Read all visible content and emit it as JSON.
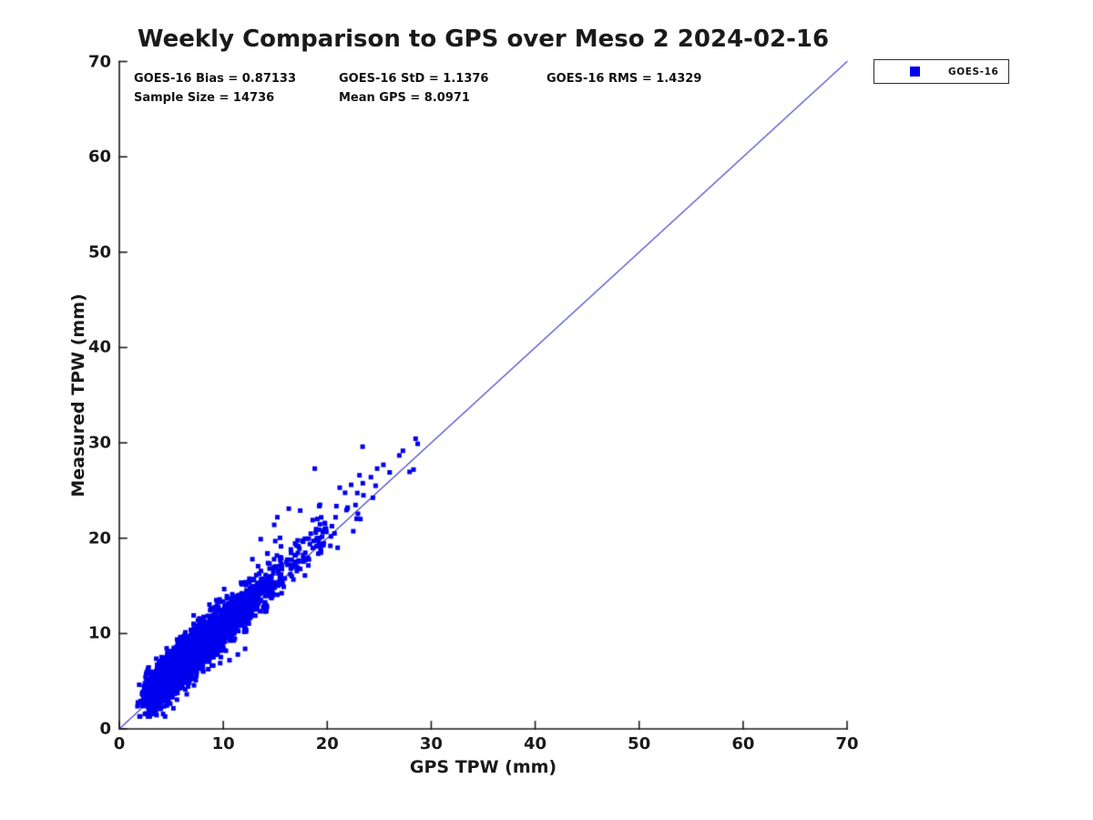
{
  "chart_data": {
    "type": "scatter",
    "title": "Weekly Comparison to GPS over Meso 2 2024-02-16",
    "xlabel": "GPS TPW (mm)",
    "ylabel": "Measured TPW (mm)",
    "xlim": [
      0,
      70
    ],
    "ylim": [
      0,
      70
    ],
    "xticks": [
      0,
      10,
      20,
      30,
      40,
      50,
      60,
      70
    ],
    "yticks": [
      0,
      10,
      20,
      30,
      40,
      50,
      60,
      70
    ],
    "grid": false,
    "annotations": {
      "row1": [
        "GOES-16 Bias = 0.87133",
        "GOES-16 StD = 1.1376",
        "GOES-16 RMS = 1.4329"
      ],
      "row2": [
        "Sample Size = 14736",
        "Mean GPS = 8.0971"
      ]
    },
    "stats": {
      "bias": 0.87133,
      "std": 1.1376,
      "rms": 1.4329,
      "sample_size": 14736,
      "mean_gps": 8.0971
    },
    "legend": {
      "position": "outside-top-right",
      "entries": [
        {
          "label": "GOES-16",
          "marker": "filled-square",
          "color": "#0000EE"
        }
      ]
    },
    "reference_line": {
      "x": [
        0,
        70
      ],
      "y": [
        0,
        70
      ],
      "color": "#3333CC",
      "width": 1.2
    },
    "series": [
      {
        "name": "GOES-16",
        "marker": "square",
        "color": "#0000EE",
        "marker_size_px": 5,
        "point_cloud_model": {
          "seed": 20240216,
          "n": 3200,
          "x_lognormal_mu": 1.95,
          "x_lognormal_sigma": 0.44,
          "x_min": 0.5,
          "x_max": 28.5,
          "bias": 0.87133,
          "noise_std": 1.1376,
          "y_min": 1.3,
          "max_above_line": 6.5,
          "max_below_line": 3.4
        },
        "outlier_points": [
          [
            18.8,
            27.3
          ],
          [
            23.4,
            29.6
          ],
          [
            28.7,
            29.9
          ],
          [
            28.3,
            27.2
          ],
          [
            15.2,
            22.2
          ],
          [
            16.3,
            23.1
          ],
          [
            14.9,
            21.4
          ],
          [
            17.4,
            22.9
          ],
          [
            19.3,
            23.5
          ],
          [
            21.2,
            25.3
          ],
          [
            22.3,
            25.6
          ],
          [
            23.1,
            26.6
          ],
          [
            24.2,
            26.4
          ],
          [
            24.8,
            27.3
          ],
          [
            25.4,
            27.7
          ],
          [
            26.0,
            26.9
          ],
          [
            13.6,
            19.9
          ],
          [
            12.8,
            17.8
          ],
          [
            15.0,
            19.7
          ],
          [
            18.6,
            21.9
          ],
          [
            20.3,
            19.2
          ],
          [
            21.0,
            19.0
          ],
          [
            20.7,
            20.5
          ],
          [
            19.0,
            20.0
          ],
          [
            10.6,
            7.2
          ],
          [
            11.4,
            7.8
          ],
          [
            9.7,
            6.9
          ],
          [
            12.1,
            8.4
          ]
        ]
      }
    ],
    "colors": {
      "axis": "#1a1a1a",
      "text": "#1a1a1a",
      "background": "#ffffff"
    }
  }
}
